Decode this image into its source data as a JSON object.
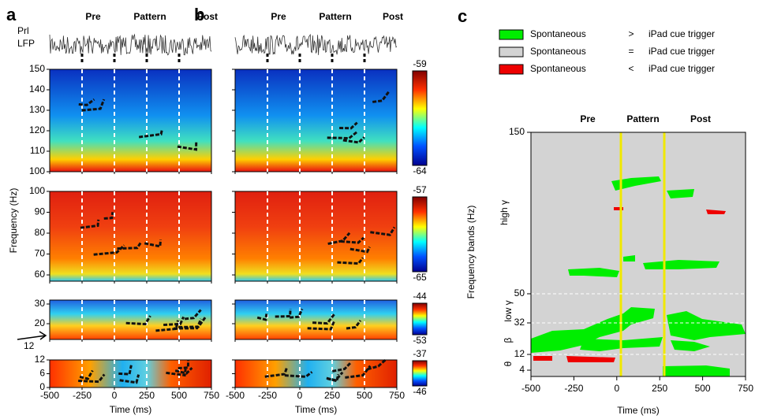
{
  "panels": [
    {
      "label": "a",
      "phases": [
        "Pre",
        "Pattern",
        "Post"
      ],
      "phase_colors": [
        "#e8a4a4",
        "#8a8a8a",
        "#bfe9f2"
      ]
    },
    {
      "label": "b",
      "phases": [
        "Pre",
        "Pattern",
        "Post"
      ],
      "phase_colors": [
        "#e00000",
        "#000000",
        "#1a8fd6"
      ]
    }
  ],
  "lfp_label": [
    "Prl",
    "LFP"
  ],
  "y_axis_label": "Frequency (Hz)",
  "x_axis_label": "Time (ms)",
  "xlim": [
    -500,
    750
  ],
  "xticks": [
    -500,
    -250,
    0,
    250,
    500,
    750
  ],
  "heatmaps": [
    {
      "ylim": [
        100,
        150
      ],
      "yticks": [
        100,
        110,
        120,
        130,
        140,
        150
      ],
      "colorbar": [
        -59,
        -64
      ]
    },
    {
      "ylim": [
        57,
        100
      ],
      "yticks": [
        60,
        70,
        80,
        90,
        100
      ],
      "colorbar": [
        -57,
        -65
      ]
    },
    {
      "ylim": [
        12,
        32
      ],
      "yticks": [
        20,
        30
      ],
      "colorbar": [
        -44,
        -53
      ]
    },
    {
      "ylim": [
        0,
        12
      ],
      "yticks": [
        0,
        6,
        12
      ],
      "colorbar": [
        -37,
        -46
      ]
    }
  ],
  "arrow_label": "12",
  "panel_c": {
    "label": "c",
    "legend": [
      {
        "text": "Spontaneous",
        "op": ">",
        "rhs": "iPad cue trigger",
        "color": "#00ee00"
      },
      {
        "text": "Spontaneous",
        "op": "=",
        "rhs": "iPad cue trigger",
        "color": "#d3d3d3"
      },
      {
        "text": "Spontaneous",
        "op": "<",
        "rhs": "iPad cue trigger",
        "color": "#ee0000"
      }
    ],
    "phases": [
      "Pre",
      "Pattern",
      "Post"
    ],
    "yticks": [
      150,
      50,
      32,
      12,
      4
    ],
    "band_labels": [
      "high γ",
      "low γ",
      "β",
      "θ"
    ],
    "y_label": "Frequency bands (Hz)",
    "x_label": "Time (ms)",
    "xlim": [
      -500,
      750
    ],
    "xticks": [
      -500,
      -250,
      0,
      250,
      500,
      750
    ]
  }
}
